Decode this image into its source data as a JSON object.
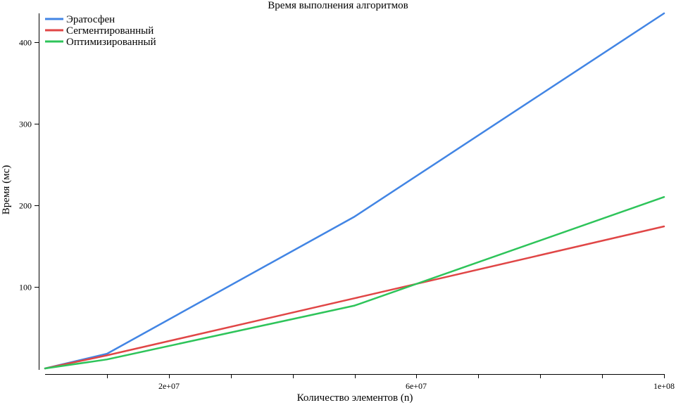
{
  "chart_data": {
    "type": "line",
    "title": "Время выполнения алгоритмов",
    "xlabel": "Количество элементов (n)",
    "ylabel": "Время (мс)",
    "xlim": [
      0,
      100000000
    ],
    "ylim": [
      0,
      435
    ],
    "x": [
      0,
      10000000,
      50000000,
      100000000
    ],
    "x_ticks": [
      10000000,
      20000000,
      30000000,
      40000000,
      50000000,
      60000000,
      70000000,
      80000000,
      90000000,
      100000000
    ],
    "x_tick_labels": [
      {
        "value": 20000000,
        "label": "2e+07"
      },
      {
        "value": 60000000,
        "label": "6e+07"
      },
      {
        "value": 100000000,
        "label": "1e+08"
      }
    ],
    "y_ticks": [
      100,
      200,
      300,
      400
    ],
    "y_tick_labels": [
      "100",
      "200",
      "300",
      "400"
    ],
    "grid": false,
    "legend_position": "top-left",
    "series": [
      {
        "name": "Эратосфен",
        "color": "#4285e4",
        "values": [
          0,
          18,
          186,
          435
        ]
      },
      {
        "name": "Сегментированный",
        "color": "#e04646",
        "values": [
          0,
          16,
          86,
          174
        ]
      },
      {
        "name": "Оптимизированный",
        "color": "#2ec45a",
        "values": [
          0,
          11,
          77,
          210
        ]
      }
    ]
  }
}
